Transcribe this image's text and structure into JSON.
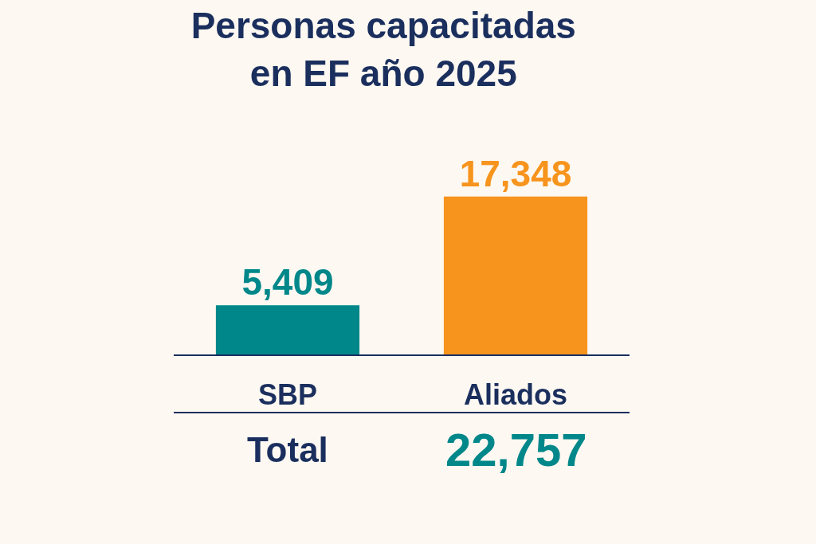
{
  "chart_data": {
    "type": "bar",
    "title": "Personas capacitadas\nen EF año 2025",
    "categories": [
      "SBP",
      "Aliados"
    ],
    "values": [
      5409,
      17348
    ],
    "colors": [
      "#00878a",
      "#f7941d"
    ],
    "value_labels": [
      "5,409",
      "17,348"
    ],
    "annotations": [
      "Total",
      "22,757"
    ]
  }
}
